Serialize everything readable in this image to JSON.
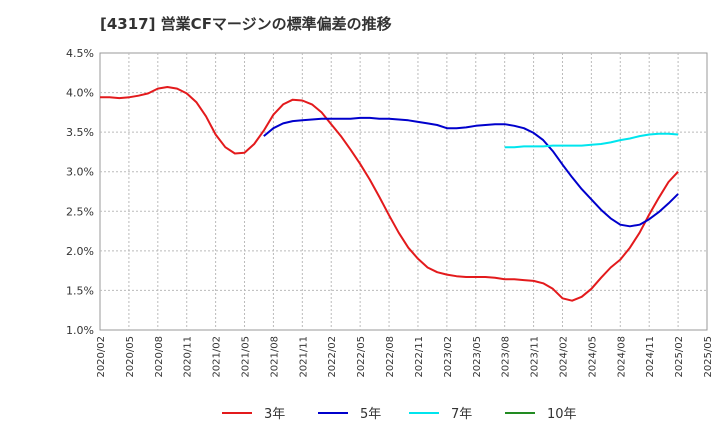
{
  "chart_data": {
    "type": "line",
    "title": "[4317]  営業CFマージンの標準偏差の推移",
    "xlabel": "",
    "ylabel": "",
    "ylim": [
      1.0,
      4.5
    ],
    "y_ticks": [
      "1.0%",
      "1.5%",
      "2.0%",
      "2.5%",
      "3.0%",
      "3.5%",
      "4.0%",
      "4.5%"
    ],
    "x_ticks": [
      "2020/02",
      "2020/05",
      "2020/08",
      "2020/11",
      "2021/02",
      "2021/05",
      "2021/08",
      "2021/11",
      "2022/02",
      "2022/05",
      "2022/08",
      "2022/11",
      "2023/02",
      "2023/05",
      "2023/08",
      "2023/11",
      "2024/02",
      "2024/05",
      "2024/08",
      "2024/11",
      "2025/02",
      "2025/05"
    ],
    "grid": true,
    "legend_position": "bottom",
    "series": [
      {
        "name": "3年",
        "color": "#e31a1c",
        "points": [
          [
            "2020/02",
            3.94
          ],
          [
            "2020/03",
            3.94
          ],
          [
            "2020/04",
            3.93
          ],
          [
            "2020/05",
            3.94
          ],
          [
            "2020/06",
            3.96
          ],
          [
            "2020/07",
            3.99
          ],
          [
            "2020/08",
            4.05
          ],
          [
            "2020/09",
            4.07
          ],
          [
            "2020/10",
            4.05
          ],
          [
            "2020/11",
            3.99
          ],
          [
            "2020/12",
            3.88
          ],
          [
            "2021/01",
            3.7
          ],
          [
            "2021/02",
            3.47
          ],
          [
            "2021/03",
            3.31
          ],
          [
            "2021/04",
            3.23
          ],
          [
            "2021/05",
            3.24
          ],
          [
            "2021/06",
            3.35
          ],
          [
            "2021/07",
            3.52
          ],
          [
            "2021/08",
            3.72
          ],
          [
            "2021/09",
            3.85
          ],
          [
            "2021/10",
            3.91
          ],
          [
            "2021/11",
            3.9
          ],
          [
            "2021/12",
            3.85
          ],
          [
            "2022/01",
            3.75
          ],
          [
            "2022/02",
            3.6
          ],
          [
            "2022/03",
            3.45
          ],
          [
            "2022/04",
            3.28
          ],
          [
            "2022/05",
            3.1
          ],
          [
            "2022/06",
            2.9
          ],
          [
            "2022/07",
            2.68
          ],
          [
            "2022/08",
            2.45
          ],
          [
            "2022/09",
            2.23
          ],
          [
            "2022/10",
            2.04
          ],
          [
            "2022/11",
            1.9
          ],
          [
            "2022/12",
            1.79
          ],
          [
            "2023/01",
            1.73
          ],
          [
            "2023/02",
            1.7
          ],
          [
            "2023/03",
            1.68
          ],
          [
            "2023/04",
            1.67
          ],
          [
            "2023/05",
            1.67
          ],
          [
            "2023/06",
            1.67
          ],
          [
            "2023/07",
            1.66
          ],
          [
            "2023/08",
            1.64
          ],
          [
            "2023/09",
            1.64
          ],
          [
            "2023/10",
            1.63
          ],
          [
            "2023/11",
            1.62
          ],
          [
            "2023/12",
            1.59
          ],
          [
            "2024/01",
            1.52
          ],
          [
            "2024/02",
            1.4
          ],
          [
            "2024/03",
            1.37
          ],
          [
            "2024/04",
            1.42
          ],
          [
            "2024/05",
            1.52
          ],
          [
            "2024/06",
            1.66
          ],
          [
            "2024/07",
            1.79
          ],
          [
            "2024/08",
            1.89
          ],
          [
            "2024/09",
            2.04
          ],
          [
            "2024/10",
            2.23
          ],
          [
            "2024/11",
            2.46
          ],
          [
            "2024/12",
            2.67
          ],
          [
            "2025/01",
            2.87
          ],
          [
            "2025/02",
            3.0
          ]
        ]
      },
      {
        "name": "5年",
        "color": "#0000cc",
        "points": [
          [
            "2021/07",
            3.45
          ],
          [
            "2021/08",
            3.55
          ],
          [
            "2021/09",
            3.61
          ],
          [
            "2021/10",
            3.64
          ],
          [
            "2021/11",
            3.65
          ],
          [
            "2021/12",
            3.66
          ],
          [
            "2022/01",
            3.67
          ],
          [
            "2022/02",
            3.67
          ],
          [
            "2022/03",
            3.67
          ],
          [
            "2022/04",
            3.67
          ],
          [
            "2022/05",
            3.68
          ],
          [
            "2022/06",
            3.68
          ],
          [
            "2022/07",
            3.67
          ],
          [
            "2022/08",
            3.67
          ],
          [
            "2022/09",
            3.66
          ],
          [
            "2022/10",
            3.65
          ],
          [
            "2022/11",
            3.63
          ],
          [
            "2022/12",
            3.61
          ],
          [
            "2023/01",
            3.59
          ],
          [
            "2023/02",
            3.55
          ],
          [
            "2023/03",
            3.55
          ],
          [
            "2023/04",
            3.56
          ],
          [
            "2023/05",
            3.58
          ],
          [
            "2023/06",
            3.59
          ],
          [
            "2023/07",
            3.6
          ],
          [
            "2023/08",
            3.6
          ],
          [
            "2023/09",
            3.58
          ],
          [
            "2023/10",
            3.55
          ],
          [
            "2023/11",
            3.49
          ],
          [
            "2023/12",
            3.4
          ],
          [
            "2024/01",
            3.26
          ],
          [
            "2024/02",
            3.09
          ],
          [
            "2024/03",
            2.93
          ],
          [
            "2024/04",
            2.78
          ],
          [
            "2024/05",
            2.65
          ],
          [
            "2024/06",
            2.52
          ],
          [
            "2024/07",
            2.41
          ],
          [
            "2024/08",
            2.33
          ],
          [
            "2024/09",
            2.31
          ],
          [
            "2024/10",
            2.33
          ],
          [
            "2024/11",
            2.4
          ],
          [
            "2024/12",
            2.49
          ],
          [
            "2025/01",
            2.6
          ],
          [
            "2025/02",
            2.72
          ]
        ]
      },
      {
        "name": "7年",
        "color": "#00e5ee",
        "points": [
          [
            "2023/08",
            3.31
          ],
          [
            "2023/09",
            3.31
          ],
          [
            "2023/10",
            3.32
          ],
          [
            "2023/11",
            3.32
          ],
          [
            "2023/12",
            3.32
          ],
          [
            "2024/01",
            3.33
          ],
          [
            "2024/02",
            3.33
          ],
          [
            "2024/03",
            3.33
          ],
          [
            "2024/04",
            3.33
          ],
          [
            "2024/05",
            3.34
          ],
          [
            "2024/06",
            3.35
          ],
          [
            "2024/07",
            3.37
          ],
          [
            "2024/08",
            3.4
          ],
          [
            "2024/09",
            3.42
          ],
          [
            "2024/10",
            3.45
          ],
          [
            "2024/11",
            3.47
          ],
          [
            "2024/12",
            3.48
          ],
          [
            "2025/01",
            3.48
          ],
          [
            "2025/02",
            3.47
          ]
        ]
      },
      {
        "name": "10年",
        "color": "#228b22",
        "points": []
      }
    ]
  }
}
